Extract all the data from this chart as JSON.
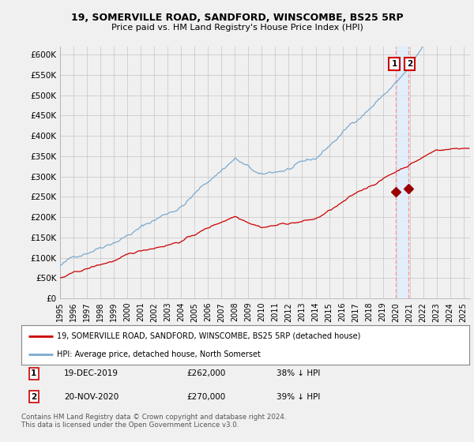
{
  "title": "19, SOMERVILLE ROAD, SANDFORD, WINSCOMBE, BS25 5RP",
  "subtitle": "Price paid vs. HM Land Registry's House Price Index (HPI)",
  "legend_label_red": "19, SOMERVILLE ROAD, SANDFORD, WINSCOMBE, BS25 5RP (detached house)",
  "legend_label_blue": "HPI: Average price, detached house, North Somerset",
  "footer": "Contains HM Land Registry data © Crown copyright and database right 2024.\nThis data is licensed under the Open Government Licence v3.0.",
  "transactions": [
    {
      "num": 1,
      "date": "19-DEC-2019",
      "price": "£262,000",
      "pct": "38% ↓ HPI",
      "year": 2019.96
    },
    {
      "num": 2,
      "date": "20-NOV-2020",
      "price": "£270,000",
      "pct": "39% ↓ HPI",
      "year": 2020.88
    }
  ],
  "ylim": [
    0,
    620000
  ],
  "yticks": [
    0,
    50000,
    100000,
    150000,
    200000,
    250000,
    300000,
    350000,
    400000,
    450000,
    500000,
    550000,
    600000
  ],
  "ytick_labels": [
    "£0",
    "£50K",
    "£100K",
    "£150K",
    "£200K",
    "£250K",
    "£300K",
    "£350K",
    "£400K",
    "£450K",
    "£500K",
    "£550K",
    "£600K"
  ],
  "xlim_start": 1995.0,
  "xlim_end": 2025.5,
  "red_color": "#cc0000",
  "blue_color": "#7aaad0",
  "marker_color": "#990000",
  "dashed_color": "#ff9999",
  "shade_color": "#ddeeff",
  "bg_color": "#f0f0f0",
  "grid_color": "#cccccc",
  "xtick_years": [
    1995,
    1996,
    1997,
    1998,
    1999,
    2000,
    2001,
    2002,
    2003,
    2004,
    2005,
    2006,
    2007,
    2008,
    2009,
    2010,
    2011,
    2012,
    2013,
    2014,
    2015,
    2016,
    2017,
    2018,
    2019,
    2020,
    2021,
    2022,
    2023,
    2024,
    2025
  ]
}
